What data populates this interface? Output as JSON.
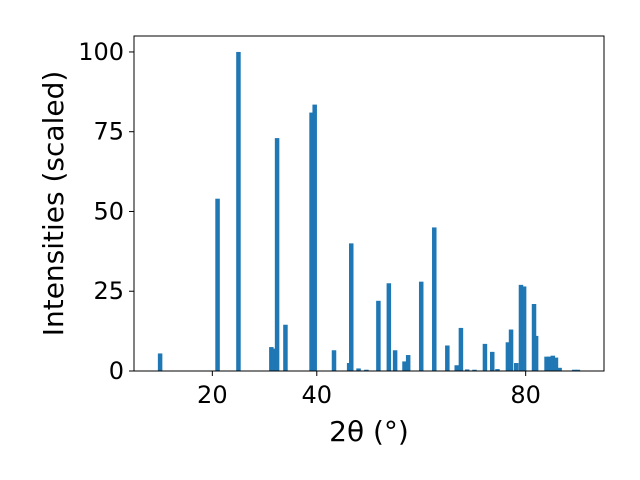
{
  "chart_data": {
    "type": "bar",
    "xlabel": "2θ (°)",
    "ylabel": "Intensities (scaled)",
    "xlim": [
      5,
      95
    ],
    "ylim": [
      0,
      105
    ],
    "xticks": [
      20,
      40,
      80
    ],
    "xtick_labels": [
      "20",
      "40",
      "80"
    ],
    "yticks": [
      0,
      25,
      50,
      75,
      100
    ],
    "ytick_labels": [
      "0",
      "25",
      "50",
      "75",
      "100"
    ],
    "bar_color": "#1f77b4",
    "grid": false,
    "series": [
      {
        "x": [
          10.0,
          21.0,
          25.0,
          31.3,
          31.8,
          32.4,
          34.0,
          39.0,
          39.6,
          43.3,
          46.2,
          46.6,
          48.0,
          49.5,
          51.8,
          53.8,
          55.0,
          56.8,
          57.5,
          60.0,
          62.5,
          65.0,
          66.8,
          67.6,
          68.8,
          70.2,
          72.2,
          73.6,
          74.6,
          76.6,
          77.2,
          78.2,
          79.1,
          79.7,
          81.6,
          82.0,
          84.0,
          84.6,
          85.2,
          85.8,
          86.5,
          89.3,
          90.0
        ],
        "y": [
          5.5,
          54,
          100,
          7.5,
          7,
          73,
          14.5,
          81,
          83.5,
          6.5,
          2.5,
          40,
          0.8,
          0.4,
          22,
          27.5,
          6.5,
          3,
          5,
          28,
          45,
          8,
          1.8,
          13.5,
          0.5,
          0.4,
          8.5,
          6,
          0.6,
          9,
          13,
          2.5,
          27,
          26.5,
          21,
          11,
          4.5,
          4.5,
          4.8,
          4.2,
          1,
          0.4,
          0.4
        ]
      }
    ]
  }
}
